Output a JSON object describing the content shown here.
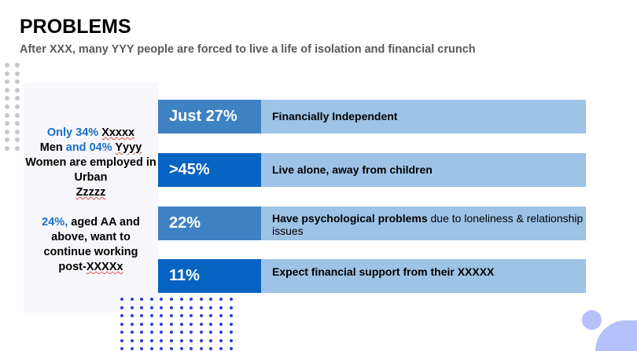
{
  "title": "PROBLEMS",
  "subtitle": "After XXX, many YYY people are forced to live a life of isolation and financial crunch",
  "panel": {
    "p1": {
      "a": "Only 34%",
      "b": "Xxxxx",
      "c": "Men",
      "d": "and 04%",
      "e": "Yyyy",
      "f": "Women are employed in Urban",
      "g": "Zzzzz"
    },
    "p2": {
      "a": "24%,",
      "b": "aged AA and above, want to continue working post-",
      "c": "XXXXx"
    }
  },
  "stats": [
    {
      "value": "Just 27%",
      "desc": "Financially Independent",
      "desc_rest": ""
    },
    {
      "value": ">45%",
      "desc": "Live alone, away from children",
      "desc_rest": ""
    },
    {
      "value": "22%",
      "desc": "Have psychological problems",
      "desc_rest": " due to loneliness & relationship issues"
    },
    {
      "value": "11%",
      "desc": "Expect financial support from their XXXXX",
      "desc_rest": ""
    }
  ],
  "colors": {
    "mid_blue": "#3f82c4",
    "dark_blue": "#0563c1",
    "light_blue": "#9dc3e6"
  }
}
